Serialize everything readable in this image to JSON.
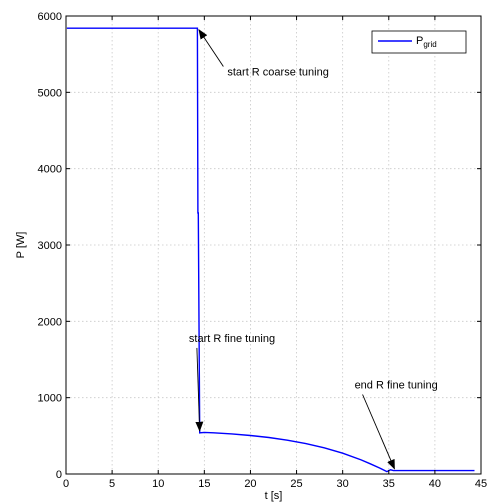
{
  "chart_data": {
    "type": "line",
    "xlabel": "t [s]",
    "ylabel": "P [W]",
    "xlim": [
      0,
      45
    ],
    "ylim": [
      0,
      6000
    ],
    "x_ticks": [
      0,
      5,
      10,
      15,
      20,
      25,
      30,
      35,
      40,
      45
    ],
    "y_ticks": [
      0,
      1000,
      2000,
      3000,
      4000,
      5000,
      6000
    ],
    "grid": true,
    "legend_position": "top-right",
    "series": [
      {
        "name": "P",
        "name_subscript": "grid",
        "color": "#0000ff",
        "x": [
          0.1,
          14.0,
          14.25,
          14.3,
          14.35,
          14.5,
          15,
          16,
          18,
          20,
          22,
          24,
          26,
          28,
          30,
          32,
          33,
          34,
          34.8,
          35.2,
          35.5,
          36,
          38,
          40,
          42,
          44.3
        ],
        "y": [
          5840,
          5840,
          5840,
          3420,
          3420,
          540,
          545,
          540,
          525,
          505,
          478,
          443,
          398,
          343,
          272,
          185,
          133,
          78,
          32,
          55,
          45,
          45,
          45,
          45,
          45,
          45
        ]
      }
    ],
    "annotations": [
      {
        "text": "start R coarse tuning",
        "text_x": 23.0,
        "text_y": 5220,
        "arrow_x": 14.3,
        "arrow_y": 5840
      },
      {
        "text": "start R fine tuning",
        "text_x": 18.0,
        "text_y": 1730,
        "arrow_x": 14.5,
        "arrow_y": 540
      },
      {
        "text": "end R fine tuning",
        "text_x": 35.8,
        "text_y": 1120,
        "arrow_x": 35.7,
        "arrow_y": 45
      }
    ]
  }
}
